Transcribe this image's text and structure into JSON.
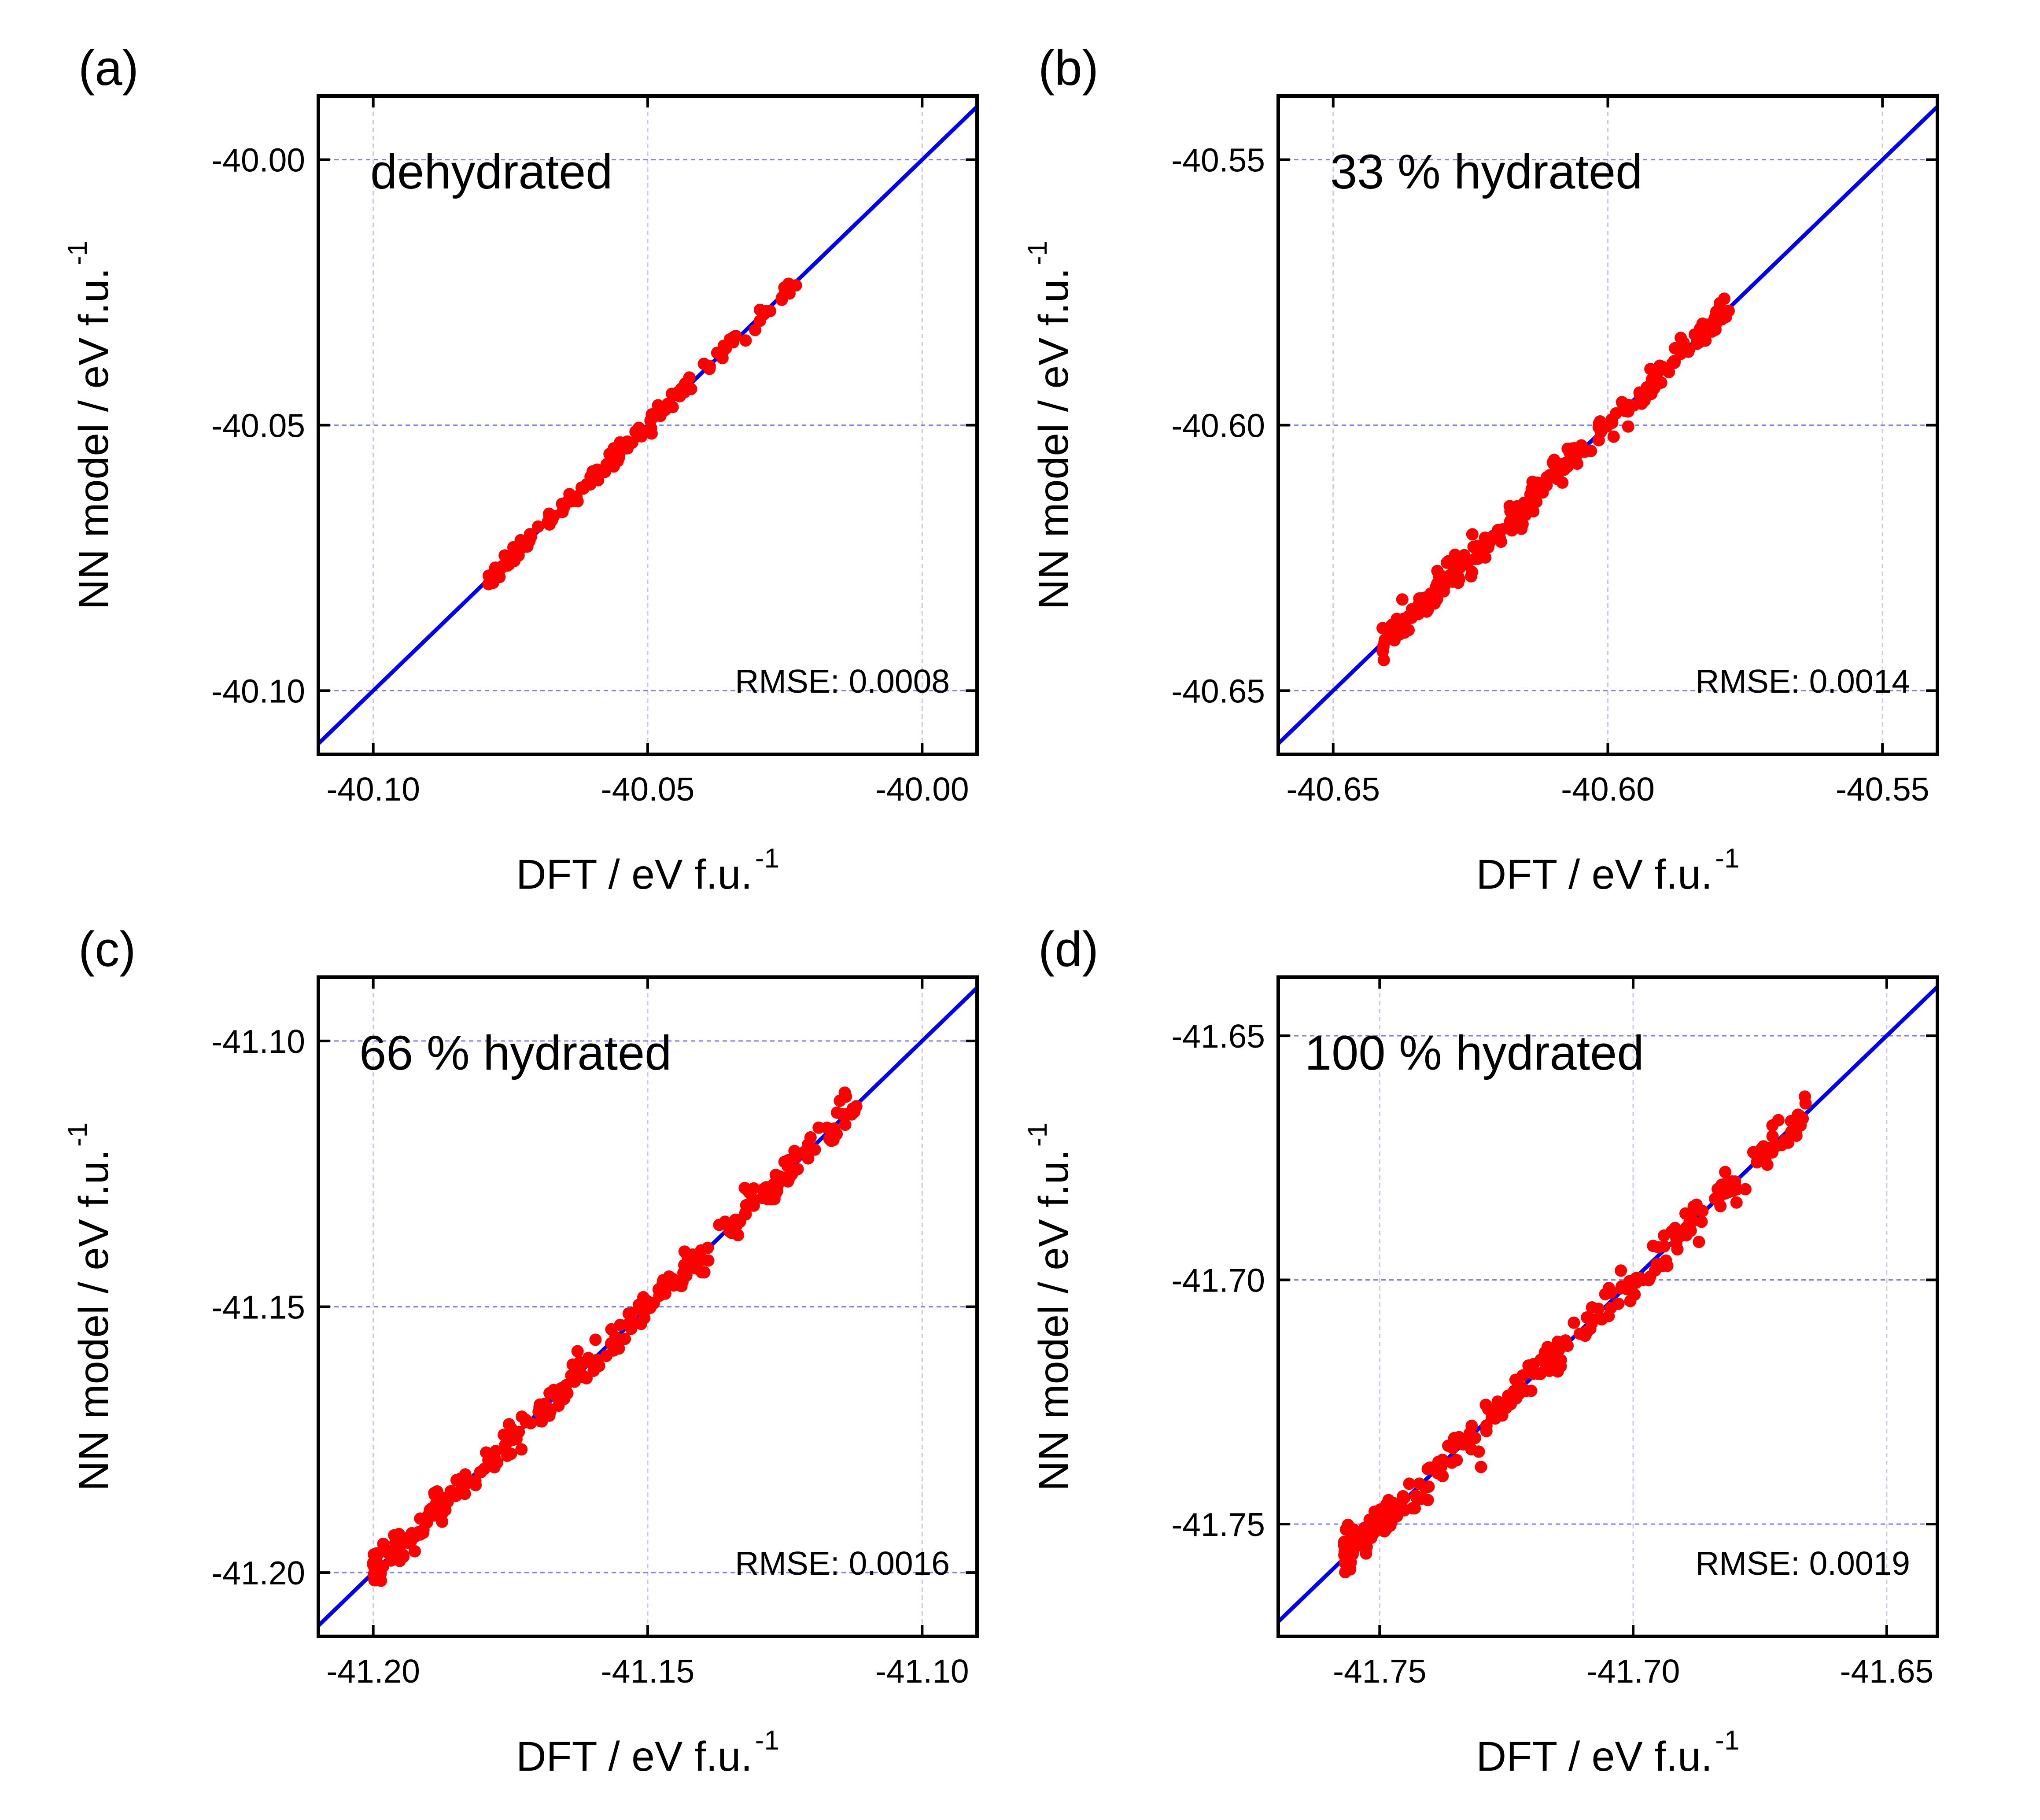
{
  "chart_data": [
    {
      "type": "scatter",
      "panel_label": "(a)",
      "title": "dehydrated",
      "xlabel": "DFT / eV f.u.",
      "ylabel": "NN model / eV f.u.",
      "unit_exponent": "-1",
      "rmse_label": "RMSE: 0.0008",
      "xlim": [
        -40.11,
        -39.99
      ],
      "ylim": [
        -40.112,
        -39.988
      ],
      "xticks": [
        -40.1,
        -40.05,
        -40.0
      ],
      "yticks": [
        -40.1,
        -40.05,
        -40.0
      ],
      "xtick_labels": [
        "-40.10",
        "-40.05",
        "-40.00"
      ],
      "ytick_labels": [
        "-40.10",
        "-40.05",
        "-40.00"
      ],
      "grid": true,
      "line": {
        "x": [
          -40.11,
          -39.99
        ],
        "y": [
          -40.11,
          -39.99
        ],
        "color": "#0000ee"
      },
      "scatter": {
        "color": "#ff0000",
        "range": [
          -40.079,
          -40.023
        ],
        "spread": 0.0008,
        "count": 150,
        "seed": 11
      }
    },
    {
      "type": "scatter",
      "panel_label": "(b)",
      "title": "33 % hydrated",
      "xlabel": "DFT / eV f.u.",
      "ylabel": "NN model / eV f.u.",
      "unit_exponent": "-1",
      "rmse_label": "RMSE: 0.0014",
      "xlim": [
        -40.66,
        -40.54
      ],
      "ylim": [
        -40.662,
        -40.538
      ],
      "xticks": [
        -40.65,
        -40.6,
        -40.55
      ],
      "yticks": [
        -40.65,
        -40.6,
        -40.55
      ],
      "xtick_labels": [
        "-40.65",
        "-40.60",
        "-40.55"
      ],
      "ytick_labels": [
        "-40.65",
        "-40.60",
        "-40.55"
      ],
      "grid": true,
      "line": {
        "x": [
          -40.66,
          -40.54
        ],
        "y": [
          -40.66,
          -40.54
        ],
        "color": "#0000ee"
      },
      "scatter": {
        "color": "#ff0000",
        "range": [
          -40.641,
          -40.578
        ],
        "spread": 0.0014,
        "count": 260,
        "seed": 23
      }
    },
    {
      "type": "scatter",
      "panel_label": "(c)",
      "title": "66 % hydrated",
      "xlabel": "DFT / eV f.u.",
      "ylabel": "NN model / eV f.u.",
      "unit_exponent": "-1",
      "rmse_label": "RMSE: 0.0016",
      "xlim": [
        -41.21,
        -41.09
      ],
      "ylim": [
        -41.212,
        -41.088
      ],
      "xticks": [
        -41.2,
        -41.15,
        -41.1
      ],
      "yticks": [
        -41.2,
        -41.15,
        -41.1
      ],
      "xtick_labels": [
        "-41.20",
        "-41.15",
        "-41.10"
      ],
      "ytick_labels": [
        "-41.20",
        "-41.15",
        "-41.10"
      ],
      "grid": true,
      "line": {
        "x": [
          -41.21,
          -41.09
        ],
        "y": [
          -41.21,
          -41.09
        ],
        "color": "#0000ee"
      },
      "scatter": {
        "color": "#ff0000",
        "range": [
          -41.2,
          -41.112
        ],
        "spread": 0.0016,
        "count": 300,
        "seed": 37
      }
    },
    {
      "type": "scatter",
      "panel_label": "(d)",
      "title": "100 % hydrated",
      "xlabel": "DFT / eV f.u.",
      "ylabel": "NN model / eV f.u.",
      "unit_exponent": "-1",
      "rmse_label": "RMSE: 0.0019",
      "xlim": [
        -41.77,
        -41.64
      ],
      "ylim": [
        -41.773,
        -41.638
      ],
      "xticks": [
        -41.75,
        -41.7,
        -41.65
      ],
      "yticks": [
        -41.75,
        -41.7,
        -41.65
      ],
      "xtick_labels": [
        "-41.75",
        "-41.70",
        "-41.65"
      ],
      "ytick_labels": [
        "-41.75",
        "-41.70",
        "-41.65"
      ],
      "grid": true,
      "line": {
        "x": [
          -41.77,
          -41.64
        ],
        "y": [
          -41.77,
          -41.64
        ],
        "color": "#0000ee"
      },
      "scatter": {
        "color": "#ff0000",
        "range": [
          -41.757,
          -41.666
        ],
        "spread": 0.0019,
        "count": 300,
        "seed": 51
      }
    }
  ]
}
